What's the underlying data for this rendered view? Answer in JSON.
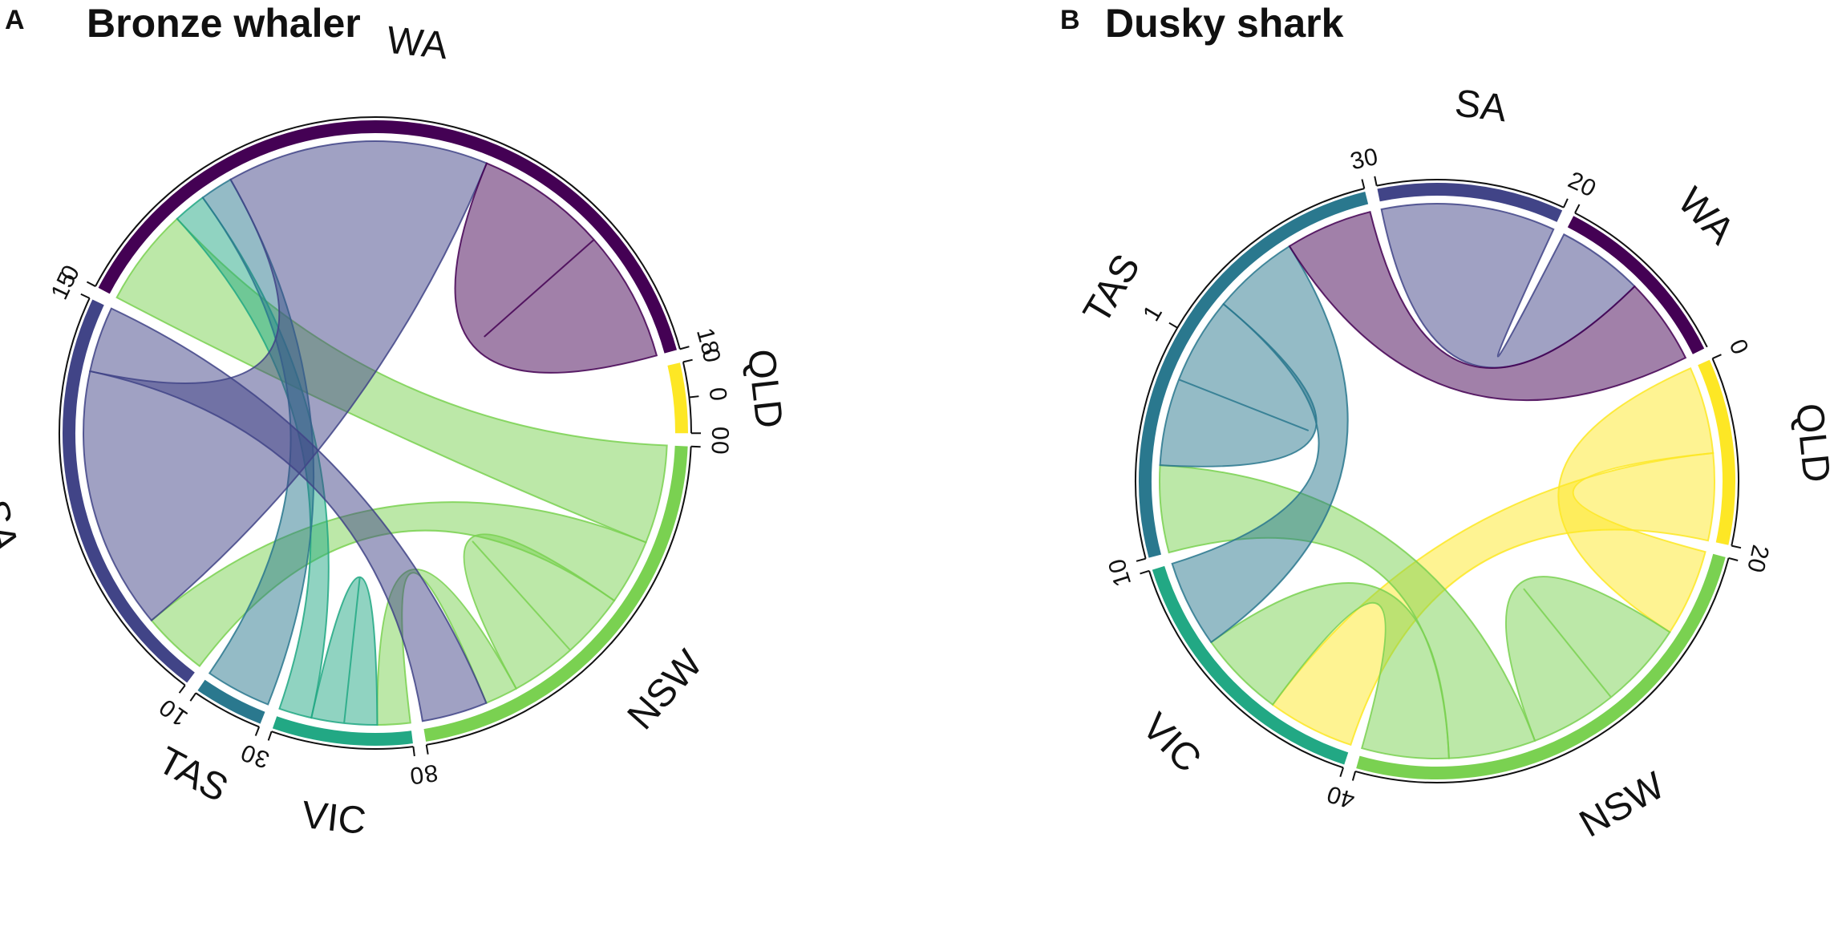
{
  "chart_data": [
    {
      "type": "chord",
      "panel": "A",
      "title": "Bronze whaler",
      "sectors": [
        {
          "name": "QLD",
          "color": "#FDE725",
          "range": [
            0,
            0
          ],
          "ticks": [
            "0",
            "0",
            "0"
          ]
        },
        {
          "name": "NSW",
          "color": "#7AD151",
          "range": [
            0,
            8
          ],
          "ticks": [
            "0",
            "8"
          ]
        },
        {
          "name": "VIC",
          "color": "#22A884",
          "range": [
            0,
            3
          ],
          "ticks": [
            "0",
            "3"
          ]
        },
        {
          "name": "TAS",
          "color": "#2A788E",
          "range": [
            0,
            1
          ],
          "ticks": [
            "0",
            "1"
          ]
        },
        {
          "name": "SA",
          "color": "#414487",
          "range": [
            0,
            15
          ],
          "ticks": [
            "0",
            "15"
          ]
        },
        {
          "name": "WA",
          "color": "#440154",
          "range": [
            0,
            18
          ],
          "ticks": [
            "0",
            "18"
          ]
        }
      ],
      "links": [
        {
          "from": "NSW",
          "to": "WA",
          "value": 3
        },
        {
          "from": "NSW",
          "to": "SA",
          "value": 2
        },
        {
          "from": "NSW",
          "to": "NSW",
          "value": 2
        },
        {
          "from": "NSW",
          "to": "VIC",
          "value": 1
        },
        {
          "from": "VIC",
          "to": "VIC",
          "value": 1
        },
        {
          "from": "VIC",
          "to": "WA",
          "value": 1
        },
        {
          "from": "TAS",
          "to": "WA",
          "value": 1
        },
        {
          "from": "SA",
          "to": "WA",
          "value": 8
        },
        {
          "from": "SA",
          "to": "NSW",
          "value": 2
        },
        {
          "from": "WA",
          "to": "WA",
          "value": 4
        }
      ]
    },
    {
      "type": "chord",
      "panel": "B",
      "title": "Dusky shark",
      "sectors": [
        {
          "name": "QLD",
          "color": "#FDE725",
          "range": [
            0,
            2
          ],
          "ticks": [
            "0",
            "2"
          ]
        },
        {
          "name": "NSW",
          "color": "#7AD151",
          "range": [
            0,
            4
          ],
          "ticks": [
            "0",
            "4"
          ]
        },
        {
          "name": "VIC",
          "color": "#22A884",
          "range": [
            0,
            1
          ],
          "ticks": [
            "0",
            "1"
          ]
        },
        {
          "name": "TAS",
          "color": "#2A788E",
          "range": [
            0,
            3
          ],
          "ticks": [
            "0",
            "1",
            "3"
          ]
        },
        {
          "name": "SA",
          "color": "#414487",
          "range": [
            0,
            2
          ],
          "ticks": [
            "0",
            "2"
          ]
        },
        {
          "name": "WA",
          "color": "#440154",
          "range": [
            0,
            2
          ],
          "ticks": [
            "0"
          ]
        }
      ],
      "links": [
        {
          "from": "QLD",
          "to": "NSW",
          "value": 1
        },
        {
          "from": "QLD",
          "to": "VIC",
          "value": 1
        },
        {
          "from": "NSW",
          "to": "NSW",
          "value": 1
        },
        {
          "from": "NSW",
          "to": "TAS",
          "value": 1
        },
        {
          "from": "NSW",
          "to": "VIC",
          "value": 1
        },
        {
          "from": "TAS",
          "to": "TAS",
          "value": 1
        },
        {
          "from": "TAS",
          "to": "VIC",
          "value": 1
        },
        {
          "from": "SA",
          "to": "WA",
          "value": 1
        },
        {
          "from": "WA",
          "to": "TAS",
          "value": 1
        }
      ]
    }
  ]
}
